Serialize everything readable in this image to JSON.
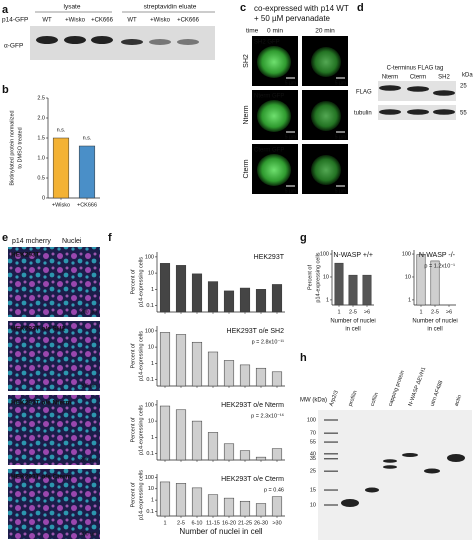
{
  "panel_labels": [
    "a",
    "b",
    "c",
    "d",
    "e",
    "f",
    "g",
    "h"
  ],
  "panel_a": {
    "row_label": "p14-GFP",
    "groups": [
      "lysate",
      "streptavidin eluate"
    ],
    "lanes": [
      "WT",
      "+Wisko",
      "+CK666",
      "WT",
      "+Wisko",
      "+CK666"
    ],
    "blot_label": "α-GFP"
  },
  "panel_c": {
    "title": [
      "co-expressed with p14 WT",
      "+ 50 µM pervanadate"
    ],
    "time_label": "time",
    "times": [
      "0 min",
      "20 min"
    ],
    "rows": [
      "SH2",
      "Nterm",
      "Cterm"
    ],
    "channel_labels": [
      "SH2 GFP",
      "Nterm GFP",
      "Cterm GFP"
    ],
    "scale_bars": [
      "5 µm",
      "5 µm",
      "5 µm",
      "5 µm",
      "5 µm",
      "5 µm"
    ]
  },
  "panel_d": {
    "title": "C-terminus FLAG tag",
    "lanes": [
      "Nterm",
      "Cterm",
      "SH2"
    ],
    "unit": "kDa",
    "blots": [
      {
        "label": "FLAG",
        "marker": 25
      },
      {
        "label": "tubulin",
        "marker": 55
      }
    ]
  },
  "panel_e": {
    "channels": [
      "p14 mcherry",
      "Nuclei"
    ],
    "images": [
      {
        "label": "HEK293T",
        "scale_bar": "200 µm"
      },
      {
        "label": "HEK293T o/e SH2",
        "scale_bar": "200 µm"
      },
      {
        "label": "HEK293T o/e Nterm",
        "scale_bar": "200 µm"
      },
      {
        "label": "HEK293T o/e Cterm",
        "scale_bar": "200 µm"
      }
    ]
  },
  "panel_h": {
    "mw_label": "MW (kDa)",
    "mw_markers": [
      100,
      70,
      55,
      40,
      35,
      25,
      15,
      10
    ],
    "lanes": [
      "Arp2/3",
      "profilin",
      "cofilin",
      "capping protein",
      "N-WASP ΔEVH1",
      "utrn AF488",
      "actin"
    ]
  },
  "chart_data": [
    {
      "type": "bar",
      "y_label": [
        "Biotinylated protein normalized",
        "to DMSO treated"
      ],
      "categories": [
        "+Wisko",
        "+CK666"
      ],
      "values": [
        1.5,
        1.3
      ],
      "colors": [
        "#f3b234",
        "#4a8fc8"
      ],
      "annotations": [
        "n.s.",
        "n.s."
      ],
      "ylim": [
        0,
        2.5
      ],
      "yticks": [
        0,
        0.5,
        {
          "value": 1,
          "label": "1.0"
        },
        1.5,
        {
          "value": 2,
          "label": "2.0"
        },
        2.5
      ],
      "log_scale": false
    },
    {
      "type": "bar",
      "title": "HEK293T",
      "y_label": [
        "Percent of",
        "p14-expressing cells"
      ],
      "categories": [
        null,
        null,
        null,
        null,
        null,
        null,
        null,
        null
      ],
      "values": [
        40,
        30,
        9,
        3,
        0.8,
        1.2,
        1,
        2
      ],
      "color": "#454545",
      "ylim": [
        0.04,
        200
      ],
      "yticks": [
        0.1,
        1,
        10,
        100
      ],
      "log_scale": true
    },
    {
      "type": "bar",
      "title": "HEK293T o/e SH2",
      "subtitle": "p = 2.8x10⁻¹¹",
      "y_label": [
        "Percent of",
        "p14-expressing cells"
      ],
      "categories": [
        null,
        null,
        null,
        null,
        null,
        null,
        null,
        null
      ],
      "values": [
        80,
        60,
        20,
        5,
        1.5,
        0.8,
        0.5,
        0.3
      ],
      "color": "#cfcfcf",
      "ylim": [
        0.04,
        200
      ],
      "yticks": [
        0.1,
        1,
        10,
        100
      ],
      "log_scale": true
    },
    {
      "type": "bar",
      "title": "HEK293T o/e Nterm",
      "subtitle": "p = 2.3x10⁻¹⁶",
      "y_label": [
        "Percent of",
        "p14-expressing cells"
      ],
      "categories": [
        null,
        null,
        null,
        null,
        null,
        null,
        null,
        null
      ],
      "values": [
        85,
        50,
        10,
        2,
        0.4,
        0.15,
        0.06,
        0.2
      ],
      "color": "#cfcfcf",
      "ylim": [
        0.04,
        200
      ],
      "yticks": [
        0.1,
        1,
        10,
        100
      ],
      "log_scale": true
    },
    {
      "type": "bar",
      "title": "HEK293T o/e Cterm",
      "subtitle": "p = 0.46",
      "y_label": [
        "Percent of",
        "p14-expressing cells"
      ],
      "x_label": [
        "Number of nuclei in cell"
      ],
      "categories": [
        "1",
        "2-5",
        "6-10",
        "11-15",
        "16-20",
        "21-25",
        "26-30",
        ">30"
      ],
      "values": [
        40,
        30,
        12,
        3,
        1.5,
        0.8,
        0.5,
        2
      ],
      "color": "#cfcfcf",
      "ylim": [
        0.04,
        200
      ],
      "yticks": [
        0.1,
        1,
        10,
        100
      ],
      "log_scale": true
    },
    {
      "type": "bar",
      "title": "N-WASP +/+",
      "y_label": [
        "Percent of",
        "p14-expressing cells"
      ],
      "x_label": [
        "Number of nuclei",
        "in cell"
      ],
      "categories": [
        "1",
        "2-5",
        ">6"
      ],
      "values": [
        40,
        12,
        12
      ],
      "color": "#555555",
      "ylim": [
        0.6,
        150
      ],
      "yticks": [
        1,
        10,
        100
      ],
      "log_scale": true
    },
    {
      "type": "bar",
      "title": "N-WASP -/-",
      "subtitle": "p = 1.2x10⁻¹",
      "x_label": [
        "Number of nuclei",
        "in cell"
      ],
      "categories": [
        "1",
        "2-5",
        ">6"
      ],
      "values": [
        95,
        50,
        null
      ],
      "color": "#cfcfcf",
      "ylim": [
        0.6,
        150
      ],
      "yticks": [
        1,
        10,
        100
      ],
      "log_scale": true
    }
  ]
}
